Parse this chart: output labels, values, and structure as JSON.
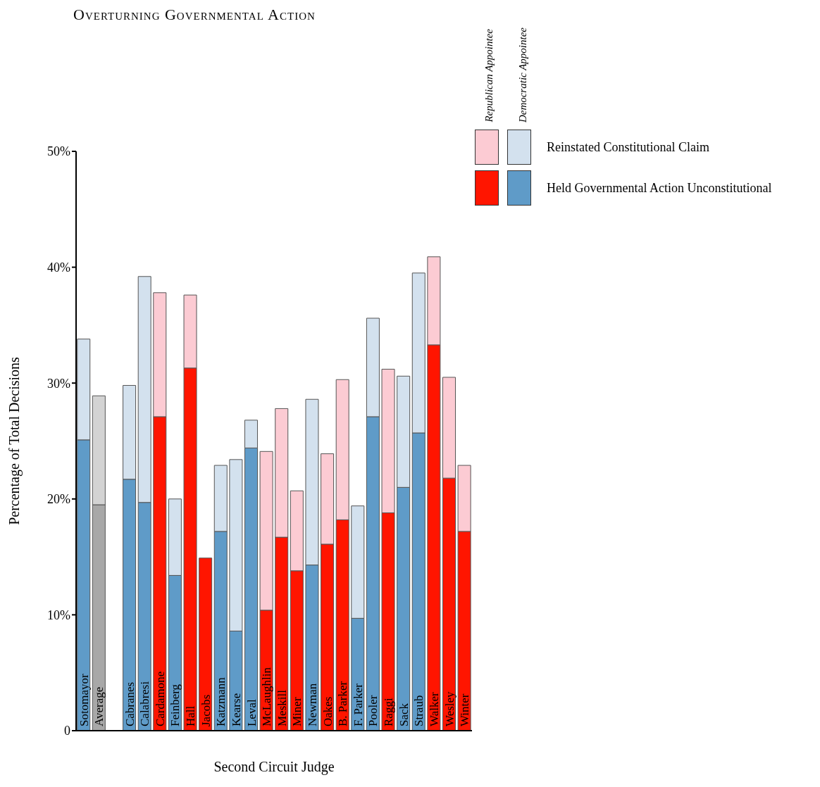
{
  "chart_data": {
    "type": "bar",
    "stacked": true,
    "title": "Overturning Governmental Action",
    "xlabel": "Second Circuit Judge",
    "ylabel": "Percentage of Total Decisions",
    "categories": [
      "Sotomayor",
      "Average",
      null,
      "Cabranes",
      "Calabresi",
      "Cardamone",
      "Feinberg",
      "Hall",
      "Jacobs",
      "Katzmann",
      "Kearse",
      "Leval",
      "McLaughlin",
      "Meskill",
      "Miner",
      "Newman",
      "Oakes",
      "B. Parker",
      "F. Parker",
      "Pooler",
      "Raggi",
      "Sack",
      "Straub",
      "Walker",
      "Wesley",
      "Winter"
    ],
    "series": [
      {
        "name": "Held Governmental Action Unconstitutional",
        "color": "#ff1500",
        "values": [
          25.1,
          null,
          null,
          21.7,
          19.7,
          27.1,
          13.4,
          31.3,
          14.9,
          17.2,
          8.6,
          24.4,
          10.4,
          16.7,
          13.8,
          14.3,
          16.1,
          18.2,
          9.7,
          27.1,
          18.8,
          21.0,
          25.7,
          33.3,
          21.8,
          17.2
        ],
        "colors": [
          "#5f9bc8",
          null,
          null,
          "#5f9bc8",
          "#5f9bc8",
          "#ff1500",
          "#5f9bc8",
          "#ff1500",
          "#ff1500",
          "#5f9bc8",
          "#5f9bc8",
          "#5f9bc8",
          "#ff1500",
          "#ff1500",
          "#ff1500",
          "#5f9bc8",
          "#ff1500",
          "#ff1500",
          "#5f9bc8",
          "#5f9bc8",
          "#ff1500",
          "#5f9bc8",
          "#5f9bc8",
          "#ff1500",
          "#ff1500",
          "#ff1500"
        ]
      },
      {
        "color": "#a8a8a8",
        "values": [
          null,
          19.5,
          null,
          null,
          null,
          null,
          null,
          null,
          null,
          null,
          null,
          null,
          null,
          null,
          null,
          null,
          null,
          null,
          null,
          null,
          null,
          null,
          null,
          null,
          null,
          null
        ]
      },
      {
        "name": "Reinstated Constitutional Claim",
        "color": "#fccbd3",
        "values": [
          8.7,
          null,
          null,
          8.1,
          19.5,
          10.7,
          6.6,
          6.3,
          null,
          5.7,
          14.8,
          2.4,
          13.7,
          11.1,
          6.9,
          14.3,
          7.8,
          12.1,
          9.7,
          8.5,
          12.4,
          9.6,
          13.8,
          7.6,
          8.7,
          5.7
        ],
        "colors": [
          "#d3e1ee",
          null,
          null,
          "#d3e1ee",
          "#d3e1ee",
          "#fccbd3",
          "#d3e1ee",
          "#fccbd3",
          null,
          "#d3e1ee",
          "#d3e1ee",
          "#d3e1ee",
          "#fccbd3",
          "#fccbd3",
          "#fccbd3",
          "#d3e1ee",
          "#fccbd3",
          "#fccbd3",
          "#d3e1ee",
          "#d3e1ee",
          "#fccbd3",
          "#d3e1ee",
          "#d3e1ee",
          "#fccbd3",
          "#fccbd3",
          "#fccbd3"
        ]
      },
      {
        "color": "#d3d3d3",
        "values": [
          null,
          9.4,
          null,
          null,
          null,
          null,
          null,
          null,
          null,
          null,
          null,
          null,
          null,
          null,
          null,
          null,
          null,
          null,
          null,
          null,
          null,
          null,
          null,
          null,
          null,
          null
        ]
      }
    ],
    "annotations": [
      "Republican Appointee",
      "Democratic Appointee"
    ],
    "ylim": [
      0,
      50
    ],
    "yticks": [
      0,
      {
        "value": 10,
        "label": "10%"
      },
      {
        "value": 20,
        "label": "20%"
      },
      {
        "value": 30,
        "label": "30%"
      },
      {
        "value": 40,
        "label": "40%"
      },
      {
        "value": 50,
        "label": "50%"
      }
    ],
    "grid": false,
    "legend": "top right"
  }
}
